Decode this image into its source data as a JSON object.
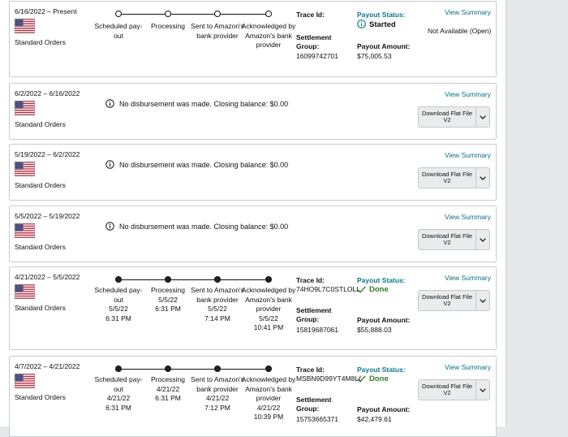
{
  "cards": [
    {
      "range": "6/16/2022 – Present",
      "order_type": "Standard Orders",
      "view_summary": "View Summary",
      "trace_label": "Trace Id:",
      "trace_id": "",
      "settlement_label": "Settlement Group:",
      "settlement_group": "16099742701",
      "payout_status_label": "Payout Status:",
      "payout_status": "Started",
      "payout_amount_label": "Payout Amount:",
      "payout_amount": "$75,005.53",
      "side_text": "Not Available (Open)",
      "steps": [
        {
          "label": "Scheduled pay-out",
          "date": "",
          "time": ""
        },
        {
          "label": "Processing",
          "date": "",
          "time": ""
        },
        {
          "label": "Sent to Amazon's bank provider",
          "date": "",
          "time": ""
        },
        {
          "label": "Acknowledged by Amazon's bank provider",
          "date": "",
          "time": ""
        }
      ]
    },
    {
      "range": "6/2/2022 – 6/16/2022",
      "order_type": "Standard Orders",
      "view_summary": "View Summary",
      "notice": "No disbursement was made. Closing balance: $0.00",
      "download": "Download Flat File V2"
    },
    {
      "range": "5/19/2022 – 6/2/2022",
      "order_type": "Standard Orders",
      "view_summary": "View Summary",
      "notice": "No disbursement was made. Closing balance: $0.00",
      "download": "Download Flat File V2"
    },
    {
      "range": "5/5/2022 – 5/19/2022",
      "order_type": "Standard Orders",
      "view_summary": "View Summary",
      "notice": "No disbursement was made. Closing balance: $0.00",
      "download": "Download Flat File V2"
    },
    {
      "range": "4/21/2022 – 5/5/2022",
      "order_type": "Standard Orders",
      "view_summary": "View Summary",
      "download": "Download Flat File V2",
      "trace_label": "Trace Id:",
      "trace_id": "74HO9L7C0STLOLL",
      "settlement_label": "Settlement Group:",
      "settlement_group": "15819687061",
      "payout_status_label": "Payout Status:",
      "payout_status": "Done",
      "payout_amount_label": "Payout Amount:",
      "payout_amount": "$55,888.03",
      "steps": [
        {
          "label": "Scheduled pay-out",
          "date": "5/5/22",
          "time": "6:31 PM"
        },
        {
          "label": "Processing",
          "date": "5/5/22",
          "time": "6:31 PM"
        },
        {
          "label": "Sent to Amazon's bank provider",
          "date": "5/5/22",
          "time": "7:14 PM"
        },
        {
          "label": "Acknowledged by Amazon's bank provider",
          "date": "5/5/22",
          "time": "10:41 PM"
        }
      ]
    },
    {
      "range": "4/7/2022 – 4/21/2022",
      "order_type": "Standard Orders",
      "view_summary": "View Summary",
      "download": "Download Flat File V2",
      "trace_label": "Trace Id:",
      "trace_id": "MSBN9D99YT4M8L6",
      "settlement_label": "Settlement Group:",
      "settlement_group": "15753665371",
      "payout_status_label": "Payout Status:",
      "payout_status": "Done",
      "payout_amount_label": "Payout Amount:",
      "payout_amount": "$42,479.61",
      "steps": [
        {
          "label": "Scheduled pay-out",
          "date": "4/21/22",
          "time": "6:31 PM"
        },
        {
          "label": "Processing",
          "date": "4/21/22",
          "time": "6:31 PM"
        },
        {
          "label": "Sent to Amazon's bank provider",
          "date": "4/21/22",
          "time": "7:12 PM"
        },
        {
          "label": "Acknowledged by Amazon's bank provider",
          "date": "4/21/22",
          "time": "10:39 PM"
        }
      ]
    }
  ],
  "colors": {
    "link": "#0a6f80",
    "status_label": "#0a7a8a",
    "done": "#2f7d2f",
    "card_border": "#c8ccd0",
    "button_bg": "#e9ebed"
  },
  "icons": [
    "us-flag-icon",
    "info-icon",
    "check-icon",
    "chevron-down-icon"
  ]
}
